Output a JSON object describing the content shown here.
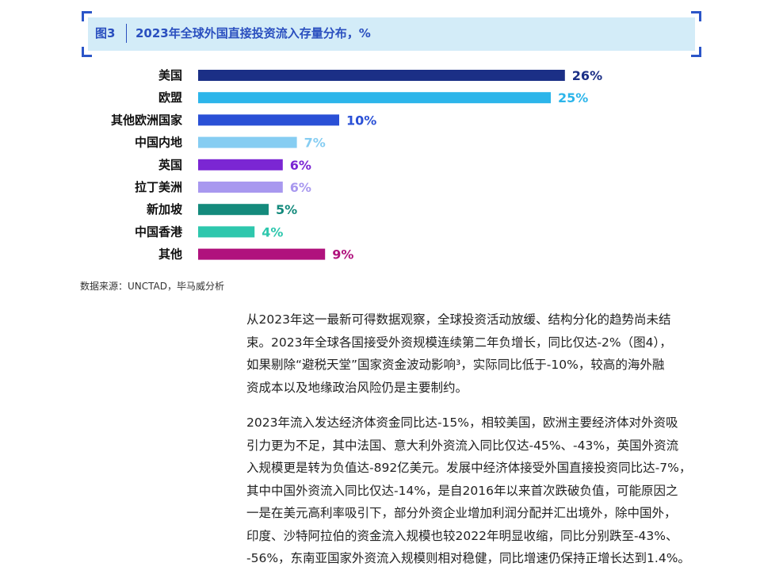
{
  "figure": {
    "number": "图3",
    "title": "2023年全球外国直接投资流入存量分布，%"
  },
  "chart_data": {
    "type": "bar",
    "orientation": "horizontal",
    "title": "2023年全球外国直接投资流入存量分布，%",
    "categories": [
      "美国",
      "欧盟",
      "其他欧洲国家",
      "中国内地",
      "英国",
      "拉丁美洲",
      "新加坡",
      "中国香港",
      "其他"
    ],
    "values": [
      26,
      25,
      10,
      7,
      6,
      6,
      5,
      4,
      9
    ],
    "value_labels": [
      "26%",
      "25%",
      "10%",
      "7%",
      "6%",
      "6%",
      "5%",
      "4%",
      "9%"
    ],
    "colors": [
      "#1b2f86",
      "#2cb5ea",
      "#2a50d6",
      "#86cdf2",
      "#7b26d3",
      "#a898ef",
      "#148a7c",
      "#2ec7ad",
      "#b0127d"
    ],
    "grid": false,
    "legend": "none"
  },
  "source": "数据来源：UNCTAD，毕马威分析",
  "paragraphs": [
    [
      "从2023年这一最新可得数据观察，全球投资活动放缓、结构分化的趋势尚未结",
      "束。2023年全球各国接受外资规模连续第二年负增长，同比仅达-2%（图4），",
      "如果剔除“避税天堂”国家资金波动影响³，实际同比低于-10%，较高的海外融",
      "资成本以及地缘政治风险仍是主要制约。"
    ],
    [
      "2023年流入发达经济体资金同比达-15%，相较美国，欧洲主要经济体对外资吸",
      "引力更为不足，其中法国、意大利外资流入同比仅达-45%、-43%，英国外资流",
      "入规模更是转为负值达-892亿美元。发展中经济体接受外国直接投资同比达-7%，",
      "其中中国外资流入同比仅达-14%，是自2016年以来首次跌破负值，可能原因之",
      "一是在美元高利率吸引下，部分外资企业增加利润分配并汇出境外，除中国外，",
      "印度、沙特阿拉伯的资金流入规模也较2022年明显收缩，同比分别跌至-43%、",
      "-56%，东南亚国家外资流入规模则相对稳健，同比增速仍保持正增长达到1.4%。"
    ]
  ]
}
